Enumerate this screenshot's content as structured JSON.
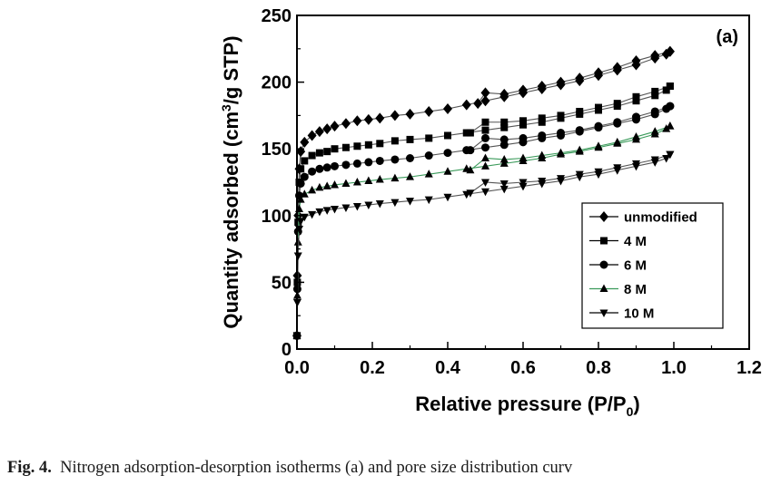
{
  "chart_data": {
    "type": "line",
    "title": "",
    "panel_label": "(a)",
    "xlabel": "Relative pressure (P/P",
    "xlabel_sub": "0",
    "xlabel_tail": ")",
    "ylabel": "Quantity adsorbed (cm",
    "ylabel_sup": "3",
    "ylabel_tail": "/g STP)",
    "xlim": [
      0.0,
      1.2
    ],
    "ylim": [
      0,
      250
    ],
    "xticks": [
      "0.0",
      "0.2",
      "0.4",
      "0.6",
      "0.8",
      "1.0",
      "1.2"
    ],
    "yticks": [
      "0",
      "50",
      "100",
      "150",
      "200",
      "250"
    ],
    "grid": false,
    "legend_position": "bottom-right",
    "series": [
      {
        "name": "unmodified",
        "marker": "diamond",
        "color": "#000000",
        "adsorption": [
          [
            0.0,
            10
          ],
          [
            0.001,
            55
          ],
          [
            0.003,
            100
          ],
          [
            0.006,
            135
          ],
          [
            0.01,
            148
          ],
          [
            0.02,
            155
          ],
          [
            0.04,
            160
          ],
          [
            0.06,
            163
          ],
          [
            0.08,
            165
          ],
          [
            0.1,
            167
          ],
          [
            0.13,
            169
          ],
          [
            0.16,
            171
          ],
          [
            0.19,
            172
          ],
          [
            0.22,
            173
          ],
          [
            0.26,
            175
          ],
          [
            0.3,
            176
          ],
          [
            0.35,
            178
          ],
          [
            0.4,
            180
          ],
          [
            0.45,
            183
          ],
          [
            0.5,
            186
          ],
          [
            0.55,
            189
          ],
          [
            0.6,
            192
          ],
          [
            0.65,
            195
          ],
          [
            0.7,
            198
          ],
          [
            0.75,
            201
          ],
          [
            0.8,
            205
          ],
          [
            0.85,
            209
          ],
          [
            0.9,
            213
          ],
          [
            0.95,
            218
          ],
          [
            0.98,
            221
          ],
          [
            0.99,
            223
          ]
        ],
        "desorption": [
          [
            0.99,
            223
          ],
          [
            0.95,
            220
          ],
          [
            0.9,
            216
          ],
          [
            0.85,
            211
          ],
          [
            0.8,
            207
          ],
          [
            0.75,
            203
          ],
          [
            0.7,
            200
          ],
          [
            0.65,
            197
          ],
          [
            0.6,
            194
          ],
          [
            0.55,
            191
          ],
          [
            0.5,
            192
          ],
          [
            0.48,
            184
          ]
        ]
      },
      {
        "name": "4 M",
        "marker": "square",
        "color": "#000000",
        "adsorption": [
          [
            0.0,
            10
          ],
          [
            0.001,
            50
          ],
          [
            0.003,
            95
          ],
          [
            0.006,
            125
          ],
          [
            0.01,
            135
          ],
          [
            0.02,
            141
          ],
          [
            0.04,
            145
          ],
          [
            0.06,
            147
          ],
          [
            0.08,
            148
          ],
          [
            0.1,
            150
          ],
          [
            0.13,
            151
          ],
          [
            0.16,
            152
          ],
          [
            0.19,
            153
          ],
          [
            0.22,
            154
          ],
          [
            0.26,
            156
          ],
          [
            0.3,
            157
          ],
          [
            0.35,
            158
          ],
          [
            0.4,
            160
          ],
          [
            0.45,
            162
          ],
          [
            0.5,
            164
          ],
          [
            0.55,
            166
          ],
          [
            0.6,
            168
          ],
          [
            0.65,
            170
          ],
          [
            0.7,
            173
          ],
          [
            0.75,
            176
          ],
          [
            0.8,
            179
          ],
          [
            0.85,
            182
          ],
          [
            0.9,
            186
          ],
          [
            0.95,
            190
          ],
          [
            0.98,
            194
          ],
          [
            0.99,
            197
          ]
        ],
        "desorption": [
          [
            0.99,
            197
          ],
          [
            0.95,
            193
          ],
          [
            0.9,
            189
          ],
          [
            0.85,
            184
          ],
          [
            0.8,
            181
          ],
          [
            0.75,
            178
          ],
          [
            0.7,
            175
          ],
          [
            0.65,
            173
          ],
          [
            0.6,
            171
          ],
          [
            0.55,
            170
          ],
          [
            0.5,
            170
          ],
          [
            0.46,
            162
          ]
        ]
      },
      {
        "name": "6 M",
        "marker": "circle",
        "color": "#000000",
        "adsorption": [
          [
            0.0,
            10
          ],
          [
            0.001,
            45
          ],
          [
            0.003,
            88
          ],
          [
            0.006,
            115
          ],
          [
            0.01,
            124
          ],
          [
            0.02,
            129
          ],
          [
            0.04,
            133
          ],
          [
            0.06,
            135
          ],
          [
            0.08,
            136
          ],
          [
            0.1,
            137
          ],
          [
            0.13,
            138
          ],
          [
            0.16,
            139
          ],
          [
            0.19,
            140
          ],
          [
            0.22,
            141
          ],
          [
            0.26,
            142
          ],
          [
            0.3,
            143
          ],
          [
            0.35,
            145
          ],
          [
            0.4,
            147
          ],
          [
            0.45,
            149
          ],
          [
            0.5,
            151
          ],
          [
            0.55,
            153
          ],
          [
            0.6,
            155
          ],
          [
            0.65,
            158
          ],
          [
            0.7,
            160
          ],
          [
            0.75,
            163
          ],
          [
            0.8,
            166
          ],
          [
            0.85,
            169
          ],
          [
            0.9,
            172
          ],
          [
            0.95,
            176
          ],
          [
            0.98,
            180
          ],
          [
            0.99,
            182
          ]
        ],
        "desorption": [
          [
            0.99,
            182
          ],
          [
            0.95,
            178
          ],
          [
            0.9,
            174
          ],
          [
            0.85,
            170
          ],
          [
            0.8,
            167
          ],
          [
            0.75,
            164
          ],
          [
            0.7,
            162
          ],
          [
            0.65,
            160
          ],
          [
            0.6,
            158
          ],
          [
            0.55,
            157
          ],
          [
            0.5,
            158
          ],
          [
            0.46,
            149
          ]
        ]
      },
      {
        "name": "8 M",
        "marker": "triangle-up",
        "color": "#000000",
        "line_color": "#3a9a5a",
        "adsorption": [
          [
            0.0,
            10
          ],
          [
            0.001,
            40
          ],
          [
            0.003,
            80
          ],
          [
            0.006,
            105
          ],
          [
            0.01,
            112
          ],
          [
            0.02,
            116
          ],
          [
            0.04,
            119
          ],
          [
            0.06,
            121
          ],
          [
            0.08,
            122
          ],
          [
            0.1,
            123
          ],
          [
            0.13,
            124
          ],
          [
            0.16,
            125
          ],
          [
            0.19,
            126
          ],
          [
            0.22,
            127
          ],
          [
            0.26,
            128
          ],
          [
            0.3,
            129
          ],
          [
            0.35,
            131
          ],
          [
            0.4,
            133
          ],
          [
            0.45,
            135
          ],
          [
            0.5,
            137
          ],
          [
            0.55,
            139
          ],
          [
            0.6,
            141
          ],
          [
            0.65,
            143
          ],
          [
            0.7,
            146
          ],
          [
            0.75,
            148
          ],
          [
            0.8,
            151
          ],
          [
            0.85,
            154
          ],
          [
            0.9,
            157
          ],
          [
            0.95,
            161
          ],
          [
            0.98,
            165
          ],
          [
            0.99,
            167
          ]
        ],
        "desorption": [
          [
            0.99,
            167
          ],
          [
            0.95,
            163
          ],
          [
            0.9,
            159
          ],
          [
            0.85,
            155
          ],
          [
            0.8,
            152
          ],
          [
            0.75,
            149
          ],
          [
            0.7,
            147
          ],
          [
            0.65,
            145
          ],
          [
            0.6,
            143
          ],
          [
            0.55,
            142
          ],
          [
            0.5,
            143
          ],
          [
            0.46,
            134
          ]
        ]
      },
      {
        "name": "10 M",
        "marker": "triangle-down",
        "color": "#000000",
        "adsorption": [
          [
            0.0,
            10
          ],
          [
            0.001,
            35
          ],
          [
            0.003,
            70
          ],
          [
            0.006,
            90
          ],
          [
            0.01,
            96
          ],
          [
            0.02,
            99
          ],
          [
            0.04,
            101
          ],
          [
            0.06,
            103
          ],
          [
            0.08,
            104
          ],
          [
            0.1,
            105
          ],
          [
            0.13,
            106
          ],
          [
            0.16,
            107
          ],
          [
            0.19,
            108
          ],
          [
            0.22,
            109
          ],
          [
            0.26,
            110
          ],
          [
            0.3,
            111
          ],
          [
            0.35,
            112
          ],
          [
            0.4,
            114
          ],
          [
            0.45,
            116
          ],
          [
            0.5,
            118
          ],
          [
            0.55,
            120
          ],
          [
            0.6,
            122
          ],
          [
            0.65,
            124
          ],
          [
            0.7,
            126
          ],
          [
            0.75,
            129
          ],
          [
            0.8,
            131
          ],
          [
            0.85,
            134
          ],
          [
            0.9,
            137
          ],
          [
            0.95,
            140
          ],
          [
            0.98,
            143
          ],
          [
            0.99,
            146
          ]
        ],
        "desorption": [
          [
            0.99,
            146
          ],
          [
            0.95,
            142
          ],
          [
            0.9,
            139
          ],
          [
            0.85,
            136
          ],
          [
            0.8,
            133
          ],
          [
            0.75,
            131
          ],
          [
            0.7,
            128
          ],
          [
            0.65,
            126
          ],
          [
            0.6,
            125
          ],
          [
            0.55,
            124
          ],
          [
            0.5,
            125
          ],
          [
            0.46,
            117
          ]
        ]
      }
    ]
  },
  "caption": {
    "label": "Fig. 4.",
    "text": "Nitrogen adsorption-desorption isotherms (a) and pore size distribution curv"
  }
}
